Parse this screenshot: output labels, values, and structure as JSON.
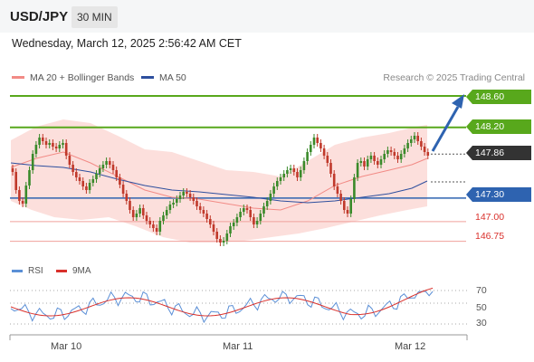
{
  "header": {
    "pair": "USD/JPY",
    "timeframe": "30 MIN"
  },
  "datetime": "Wednesday, March 12, 2025 2:56:42 AM CET",
  "legend": [
    {
      "label": "MA 20 + Bollinger Bands",
      "color": "#f28b86"
    },
    {
      "label": "MA 50",
      "color": "#2e4f9e"
    }
  ],
  "credit": "Research © 2025 Trading Central",
  "price_levels": [
    {
      "label": "148.60",
      "value": 148.6,
      "kind": "resistance"
    },
    {
      "label": "148.20",
      "value": 148.2,
      "kind": "resistance"
    },
    {
      "label": "147.86",
      "value": 147.86,
      "kind": "last"
    },
    {
      "label": "147.30",
      "value": 147.3,
      "kind": "pivot"
    },
    {
      "label": "147.00",
      "value": 147.0,
      "kind": "support"
    },
    {
      "label": "146.75",
      "value": 146.75,
      "kind": "support"
    }
  ],
  "rsi_panel": {
    "legend": [
      "RSI",
      "9MA"
    ],
    "levels": [
      "70",
      "50",
      "30"
    ]
  },
  "x_axis": [
    "Mar 10",
    "Mar 11",
    "Mar 12"
  ],
  "colors": {
    "green": "#58a81c",
    "blue": "#2e63b0",
    "red": "#d9302b",
    "dark": "#333333",
    "candle_up": "#3a8a2a",
    "candle_down": "#c0392b",
    "band": "#fbd9d6"
  }
}
